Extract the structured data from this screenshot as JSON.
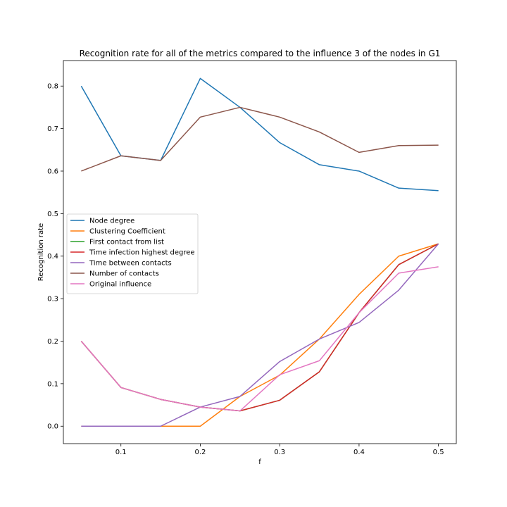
{
  "chart_data": {
    "type": "line",
    "title": "Recognition rate for all of the metrics compared to the influence 3 of the nodes in G1",
    "xlabel": "f",
    "ylabel": "Recognition rate",
    "xlim": [
      0.0275,
      0.5225
    ],
    "ylim": [
      -0.041,
      0.86
    ],
    "x_ticks": [
      "0.1",
      "0.2",
      "0.3",
      "0.4",
      "0.5"
    ],
    "y_ticks": [
      "0.0",
      "0.1",
      "0.2",
      "0.3",
      "0.4",
      "0.5",
      "0.6",
      "0.7",
      "0.8"
    ],
    "grid": false,
    "legend_position": "center-left",
    "x": [
      0.05,
      0.1,
      0.15,
      0.2,
      0.25,
      0.3,
      0.35,
      0.4,
      0.45,
      0.5
    ],
    "series": [
      {
        "name": "Node degree",
        "color": "#1f77b4",
        "values": [
          0.8,
          0.636,
          0.625,
          0.818,
          0.75,
          0.667,
          0.615,
          0.6,
          0.56,
          0.554
        ]
      },
      {
        "name": "Clustering Coefficient",
        "color": "#ff7f0e",
        "values": [
          0.0,
          0.0,
          0.0,
          0.0,
          0.07,
          0.12,
          0.205,
          0.31,
          0.4,
          0.429
        ]
      },
      {
        "name": "First contact from list",
        "color": "#2ca02c",
        "values": [
          0.2,
          0.091,
          0.063,
          0.045,
          0.036,
          0.061,
          0.128,
          0.267,
          0.38,
          0.429
        ]
      },
      {
        "name": "Time infection highest degree",
        "color": "#d62728",
        "values": [
          0.2,
          0.091,
          0.063,
          0.045,
          0.036,
          0.061,
          0.128,
          0.267,
          0.38,
          0.429
        ]
      },
      {
        "name": "Time between contacts",
        "color": "#9467bd",
        "values": [
          0.0,
          0.0,
          0.0,
          0.045,
          0.07,
          0.152,
          0.205,
          0.244,
          0.32,
          0.429
        ]
      },
      {
        "name": "Number of contacts",
        "color": "#8c564b",
        "values": [
          0.6,
          0.636,
          0.625,
          0.727,
          0.75,
          0.727,
          0.692,
          0.644,
          0.66,
          0.661
        ]
      },
      {
        "name": "Original influence",
        "color": "#e377c2",
        "values": [
          0.2,
          0.091,
          0.063,
          0.045,
          0.036,
          0.121,
          0.154,
          0.267,
          0.36,
          0.375
        ]
      }
    ]
  }
}
